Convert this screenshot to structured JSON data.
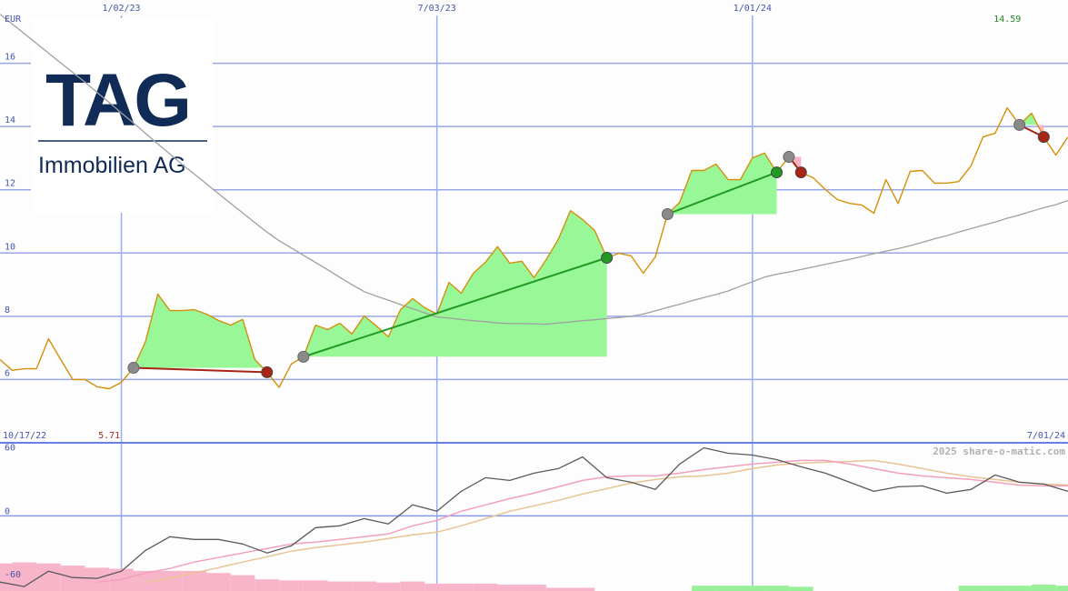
{
  "logo": {
    "name": "TAG",
    "subtitle": "Immobilien AG"
  },
  "chart_data": [
    {
      "type": "line",
      "unit": "EUR",
      "categories": [
        "10/17/22",
        null,
        null,
        null,
        null,
        null,
        null,
        null,
        null,
        null,
        "1/02/23",
        null,
        null,
        null,
        null,
        null,
        null,
        null,
        null,
        null,
        null,
        null,
        null,
        null,
        null,
        null,
        null,
        null,
        null,
        null,
        null,
        null,
        null,
        null,
        null,
        null,
        "7/03/23",
        null,
        null,
        null,
        null,
        null,
        null,
        null,
        null,
        null,
        null,
        null,
        null,
        null,
        null,
        null,
        null,
        null,
        null,
        null,
        null,
        null,
        null,
        null,
        null,
        null,
        "1/01/24",
        null,
        null,
        null,
        null,
        null,
        null,
        null,
        null,
        null,
        null,
        null,
        null,
        null,
        null,
        null,
        null,
        null,
        null,
        null,
        null,
        null,
        null,
        null,
        null,
        null,
        "7/01/24"
      ],
      "series": [
        {
          "color": "#d4900a",
          "values": [
            6.63,
            6.29,
            6.34,
            6.34,
            7.29,
            6.63,
            6.0,
            6.0,
            5.77,
            5.71,
            5.91,
            6.37,
            7.21,
            8.7,
            8.18,
            8.18,
            8.21,
            8.07,
            7.87,
            7.72,
            7.9,
            6.63,
            6.23,
            5.75,
            6.49,
            6.72,
            7.72,
            7.58,
            7.78,
            7.44,
            8.01,
            7.7,
            7.35,
            8.21,
            8.56,
            8.27,
            8.07,
            9.07,
            8.73,
            9.36,
            9.71,
            10.2,
            9.68,
            9.74,
            9.22,
            9.79,
            10.43,
            11.34,
            11.06,
            10.71,
            9.85,
            9.99,
            9.91,
            9.36,
            9.88,
            11.23,
            11.6,
            12.61,
            12.61,
            12.81,
            12.32,
            12.32,
            13.01,
            13.16,
            12.55,
            13.04,
            12.55,
            12.38,
            12.01,
            11.69,
            11.57,
            11.52,
            11.26,
            12.32,
            11.57,
            12.58,
            12.61,
            12.21,
            12.21,
            12.26,
            12.75,
            13.67,
            13.79,
            14.59,
            14.05,
            14.42,
            13.67,
            13.1,
            13.67
          ]
        },
        {
          "color": "#a0a0a0",
          "values": [
            17.55,
            17.24,
            16.94,
            16.63,
            16.32,
            16.01,
            15.71,
            15.4,
            15.08,
            14.76,
            14.43,
            14.11,
            13.78,
            13.45,
            13.13,
            12.8,
            12.5,
            12.19,
            11.88,
            11.57,
            11.27,
            10.96,
            10.66,
            10.39,
            10.16,
            9.93,
            9.7,
            9.47,
            9.23,
            9.0,
            8.78,
            8.64,
            8.51,
            8.37,
            8.24,
            8.11,
            7.98,
            7.94,
            7.9,
            7.86,
            7.83,
            7.79,
            7.77,
            7.77,
            7.76,
            7.75,
            7.79,
            7.82,
            7.86,
            7.89,
            7.93,
            7.96,
            8.0,
            8.07,
            8.17,
            8.28,
            8.38,
            8.49,
            8.59,
            8.69,
            8.8,
            8.95,
            9.09,
            9.24,
            9.33,
            9.4,
            9.48,
            9.56,
            9.64,
            9.72,
            9.8,
            9.89,
            9.98,
            10.06,
            10.14,
            10.23,
            10.34,
            10.45,
            10.55,
            10.66,
            10.77,
            10.88,
            10.98,
            11.1,
            11.2,
            11.32,
            11.43,
            11.53,
            11.66
          ]
        }
      ],
      "entries": [
        null,
        null,
        null,
        null,
        null,
        null,
        null,
        null,
        null,
        null,
        null,
        6.37,
        null,
        null,
        null,
        null,
        null,
        null,
        null,
        null,
        null,
        null,
        null,
        null,
        null,
        6.72,
        null,
        null,
        null,
        null,
        null,
        null,
        null,
        null,
        null,
        null,
        null,
        null,
        null,
        null,
        null,
        null,
        null,
        null,
        null,
        null,
        null,
        null,
        null,
        null,
        null,
        null,
        null,
        null,
        null,
        11.23,
        null,
        null,
        null,
        null,
        null,
        null,
        null,
        null,
        null,
        13.04,
        null,
        null,
        null,
        null,
        null,
        null,
        null,
        null,
        null,
        null,
        null,
        null,
        null,
        null,
        null,
        null,
        null,
        null,
        14.05,
        null,
        null,
        null,
        null
      ],
      "exits": [
        null,
        null,
        null,
        null,
        null,
        null,
        null,
        null,
        null,
        null,
        null,
        null,
        null,
        null,
        null,
        null,
        null,
        null,
        null,
        null,
        null,
        null,
        6.23,
        null,
        null,
        null,
        null,
        null,
        null,
        null,
        null,
        null,
        null,
        null,
        null,
        null,
        null,
        null,
        null,
        null,
        null,
        null,
        null,
        null,
        null,
        null,
        null,
        null,
        null,
        null,
        9.85,
        null,
        null,
        null,
        null,
        null,
        null,
        null,
        null,
        null,
        null,
        null,
        null,
        null,
        12.55,
        null,
        12.55,
        null,
        null,
        null,
        null,
        null,
        null,
        null,
        null,
        null,
        null,
        null,
        null,
        null,
        null,
        null,
        null,
        null,
        null,
        null,
        13.67,
        null,
        null
      ],
      "entry_color": "#8a8a8a",
      "gain_color": "#229922",
      "loss_color": "#a82414",
      "gain_fill": "#98f898",
      "loss_fill": "#f8b4c4",
      "low": 5.71,
      "high": 14.59,
      "low_color": "#a03020",
      "high_color": "#228822",
      "ylim": [
        4,
        18
      ],
      "yticks": [
        16,
        14,
        12,
        10,
        8,
        6
      ],
      "grid": true
    },
    {
      "type": "line",
      "categories": [
        null,
        null,
        null,
        null,
        null,
        null,
        null,
        null,
        null,
        null,
        null,
        null,
        null,
        null,
        null,
        null,
        null,
        null,
        null,
        null,
        null,
        null,
        null,
        null,
        null,
        null,
        null,
        null,
        null,
        null,
        null,
        null,
        null,
        null,
        null,
        null,
        null,
        null,
        null,
        null,
        null,
        null,
        null,
        null,
        null
      ],
      "series": [
        {
          "color": "#5a5a5a",
          "values": [
            -62.6,
            -66.8,
            -52.3,
            -58.3,
            -59.1,
            -52.3,
            -32.6,
            -19.7,
            -22.3,
            -22.3,
            -26.6,
            -35.1,
            -28.3,
            -11.1,
            -9.4,
            -2.6,
            -7.7,
            10.3,
            4.3,
            23.1,
            36.0,
            33.4,
            40.3,
            44.6,
            55.7,
            36.0,
            31.7,
            24.9,
            48.9,
            64.3,
            59.1,
            57.4,
            53.1,
            46.3,
            40.3,
            31.7,
            23.1,
            27.4,
            28.3,
            21.4,
            24.9,
            38.6,
            31.7,
            30.0,
            23.1
          ]
        },
        {
          "color": "#f4a0bc",
          "values": [
            null,
            null,
            null,
            null,
            -62.6,
            -60.0,
            -54.0,
            -49.7,
            -43.7,
            -39.4,
            -35.1,
            -30.9,
            -26.6,
            -24.9,
            -22.3,
            -19.7,
            -17.1,
            -9.4,
            -4.3,
            4.3,
            10.3,
            16.3,
            21.4,
            27.4,
            33.4,
            36.9,
            37.7,
            37.7,
            40.3,
            43.7,
            46.3,
            48.9,
            50.6,
            52.3,
            52.3,
            48.9,
            44.6,
            40.3,
            37.7,
            36.0,
            34.3,
            31.7,
            29.1,
            28.3,
            28.3
          ]
        },
        {
          "color": "#e8c494",
          "values": [
            null,
            null,
            null,
            null,
            null,
            null,
            -62.6,
            -59.1,
            -54.0,
            -48.9,
            -43.7,
            -38.6,
            -33.4,
            -30.0,
            -27.4,
            -24.9,
            -21.4,
            -18.0,
            -15.4,
            -9.4,
            -2.6,
            4.3,
            9.4,
            14.6,
            20.6,
            25.7,
            30.9,
            34.3,
            36.9,
            37.7,
            40.3,
            44.6,
            48.0,
            49.7,
            50.6,
            51.4,
            52.3,
            48.9,
            44.6,
            40.3,
            36.9,
            34.3,
            31.7,
            30.0,
            29.1
          ]
        }
      ],
      "histogram": {
        "positive_color": "#98f098",
        "negative_color": "#f8b4c8",
        "values": [
          -26,
          -27,
          -26,
          -24,
          -22,
          -21,
          -19,
          -19,
          -19,
          -17,
          -15,
          -11,
          -10,
          -10,
          -9,
          -9,
          -8,
          -9,
          -7,
          -7,
          -7,
          -6,
          -6,
          -3,
          -3,
          0,
          0,
          0,
          0,
          5,
          5,
          5,
          5,
          4,
          0,
          0,
          0,
          0,
          0,
          0,
          5,
          5,
          5,
          6,
          5
        ]
      },
      "annotation": "2025 share-o-matic.com",
      "ylim": [
        -71,
        69
      ],
      "yticks": [
        60,
        0,
        -60
      ]
    }
  ]
}
